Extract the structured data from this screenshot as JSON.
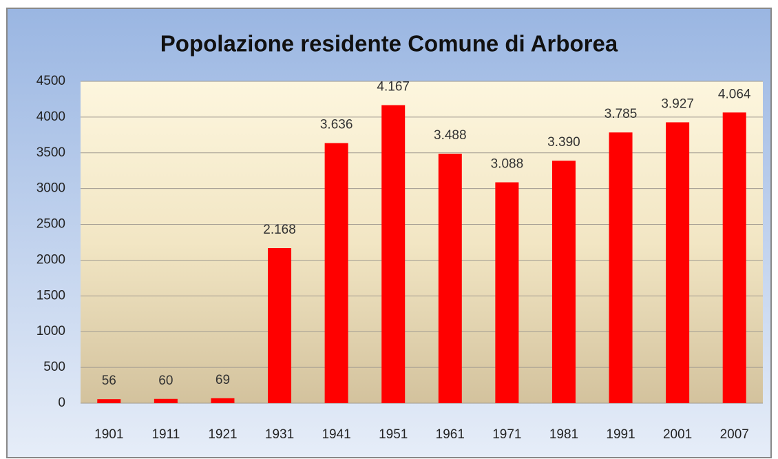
{
  "chart_data": {
    "type": "bar",
    "title": "Popolazione residente Comune di Arborea",
    "categories": [
      "1901",
      "1911",
      "1921",
      "1931",
      "1941",
      "1951",
      "1961",
      "1971",
      "1981",
      "1991",
      "2001",
      "2007"
    ],
    "values": [
      56,
      60,
      69,
      2168,
      3636,
      4167,
      3488,
      3088,
      3390,
      3785,
      3927,
      4064
    ],
    "value_labels": [
      "56",
      "60",
      "69",
      "2.168",
      "3.636",
      "4.167",
      "3.488",
      "3.088",
      "3.390",
      "3.785",
      "3.927",
      "4.064"
    ],
    "color": "#ff0000",
    "ylim": [
      0,
      4500
    ],
    "yticks": [
      0,
      500,
      1000,
      1500,
      2000,
      2500,
      3000,
      3500,
      4000,
      4500
    ],
    "grid": true
  }
}
